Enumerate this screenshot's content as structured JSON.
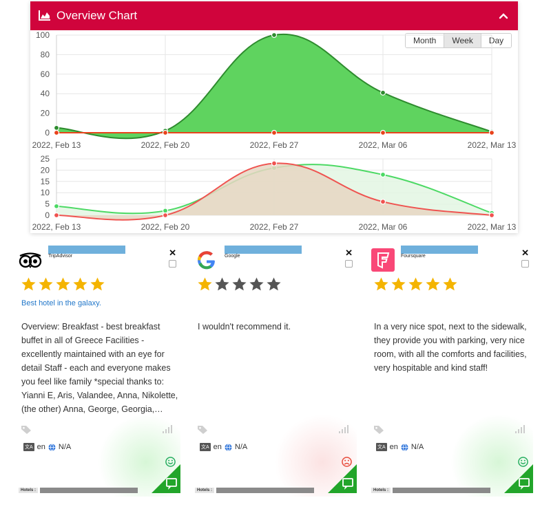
{
  "panel": {
    "title": "Overview Chart",
    "header_color": "#d0043c",
    "range_buttons": [
      {
        "label": "Month",
        "active": false
      },
      {
        "label": "Week",
        "active": true
      },
      {
        "label": "Day",
        "active": false
      }
    ]
  },
  "chart_data": [
    {
      "type": "area",
      "x": [
        "2022, Feb 13",
        "2022, Feb 20",
        "2022, Feb 27",
        "2022, Mar 06",
        "2022, Mar 13"
      ],
      "ylim": [
        0,
        100
      ],
      "yticks": [
        0,
        20,
        40,
        60,
        80,
        100
      ],
      "series": [
        {
          "values": [
            5,
            2,
            100,
            41,
            1
          ],
          "color": "#2e8b2e",
          "fill": "#5fd35f"
        },
        {
          "values": [
            0,
            0,
            0,
            0,
            0
          ],
          "color": "#e8431c",
          "fill": "none"
        }
      ]
    },
    {
      "type": "area",
      "x": [
        "2022, Feb 13",
        "2022, Feb 20",
        "2022, Feb 27",
        "2022, Mar 06",
        "2022, Mar 13"
      ],
      "ylim": [
        0,
        25
      ],
      "yticks": [
        0,
        5,
        10,
        15,
        20,
        25
      ],
      "series": [
        {
          "values": [
            4,
            2,
            21,
            18,
            1
          ],
          "color": "#4cd964",
          "fill": "#e3f6e3"
        },
        {
          "values": [
            0,
            0,
            23,
            6,
            0
          ],
          "color": "#ef5350",
          "fill": "#e6d6c2"
        }
      ]
    }
  ],
  "reviews": [
    {
      "source": "TripAdvisor",
      "rating": 5,
      "star_color": "#f4b400",
      "title": "Best hotel in the galaxy.",
      "text": "Overview: Breakfast - best breakfast buffet in all of Greece Facilities - excellently maintained with an eye for detail Staff - each and everyone makes you feel like family *special thanks to: Yianni E, Aris, Valandee, Anna, Nikolette, (the other) Anna, George, Georgia,…",
      "language": "en",
      "country": "N/A",
      "sentiment": "positive",
      "sentiment_color": "#27ae60",
      "glow_color": "rgba(140,230,140,0.35)",
      "hotels_label": "Hotels :"
    },
    {
      "source": "Google",
      "rating": 1,
      "star_color": "#f4b400",
      "title": "",
      "text": "I wouldn't recommend it.",
      "language": "en",
      "country": "N/A",
      "sentiment": "negative",
      "sentiment_color": "#e74c3c",
      "glow_color": "rgba(240,140,140,0.25)",
      "hotels_label": "Hotels :"
    },
    {
      "source": "Foursquare",
      "rating": 5,
      "star_color": "#f4b400",
      "title": "",
      "text": "In a very nice spot, next to the sidewalk, they provide you with parking, very nice room, with all the comforts and facilities, very hospitable and kind staff!",
      "language": "en",
      "country": "N/A",
      "sentiment": "positive",
      "sentiment_color": "#27ae60",
      "glow_color": "rgba(140,230,140,0.35)",
      "hotels_label": "Hotels :"
    }
  ]
}
